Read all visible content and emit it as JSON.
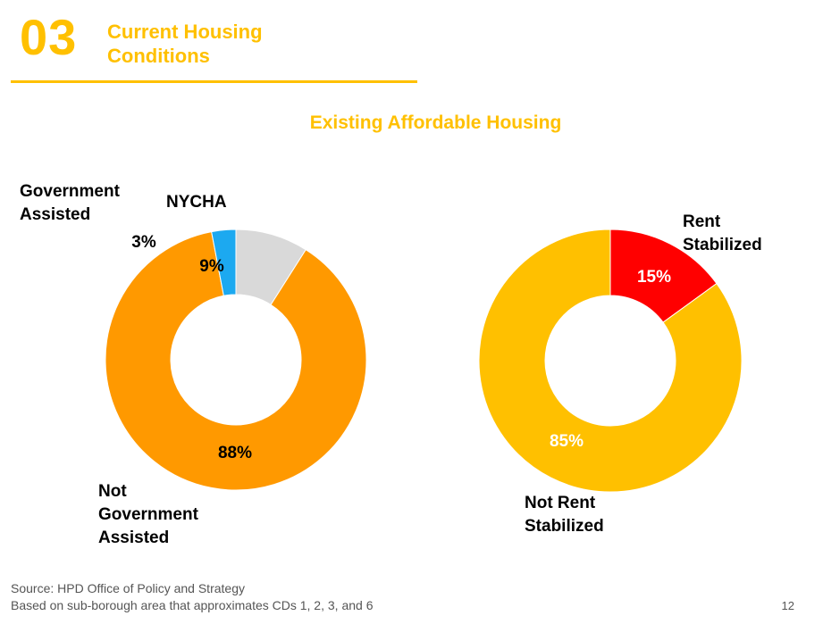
{
  "header": {
    "section_number": "03",
    "section_title": "Current Housing Conditions"
  },
  "chart_data": [
    {
      "type": "pie",
      "variant": "donut",
      "title": "Existing Affordable Housing",
      "slices": [
        {
          "name": "NYCHA",
          "value": 9,
          "label": "9%",
          "color": "#D9D9D9"
        },
        {
          "name": "Not Government Assisted",
          "value": 88,
          "label": "88%",
          "color": "#FF9900"
        },
        {
          "name": "Government Assisted",
          "value": 3,
          "label": "3%",
          "color": "#1CA9F0"
        }
      ]
    },
    {
      "type": "pie",
      "variant": "donut",
      "title": "",
      "slices": [
        {
          "name": "Rent Stabilized",
          "value": 15,
          "label": "15%",
          "color": "#FF0000"
        },
        {
          "name": "Not Rent Stabilized",
          "value": 85,
          "label": "85%",
          "color": "#FFC000"
        }
      ]
    }
  ],
  "labels": {
    "government_assisted_line1": "Government",
    "government_assisted_line2": "Assisted",
    "nycha": "NYCHA",
    "not_gov_line1": "Not",
    "not_gov_line2": "Government",
    "not_gov_line3": "Assisted",
    "rent_stab_line1": "Rent",
    "rent_stab_line2": "Stabilized",
    "not_rent_stab_line1": "Not Rent",
    "not_rent_stab_line2": "Stabilized"
  },
  "footer": {
    "source_line1": "Source: HPD Office of Policy and Strategy",
    "source_line2": "Based on sub-borough area that approximates CDs 1, 2, 3, and 6",
    "page_number": "12"
  }
}
